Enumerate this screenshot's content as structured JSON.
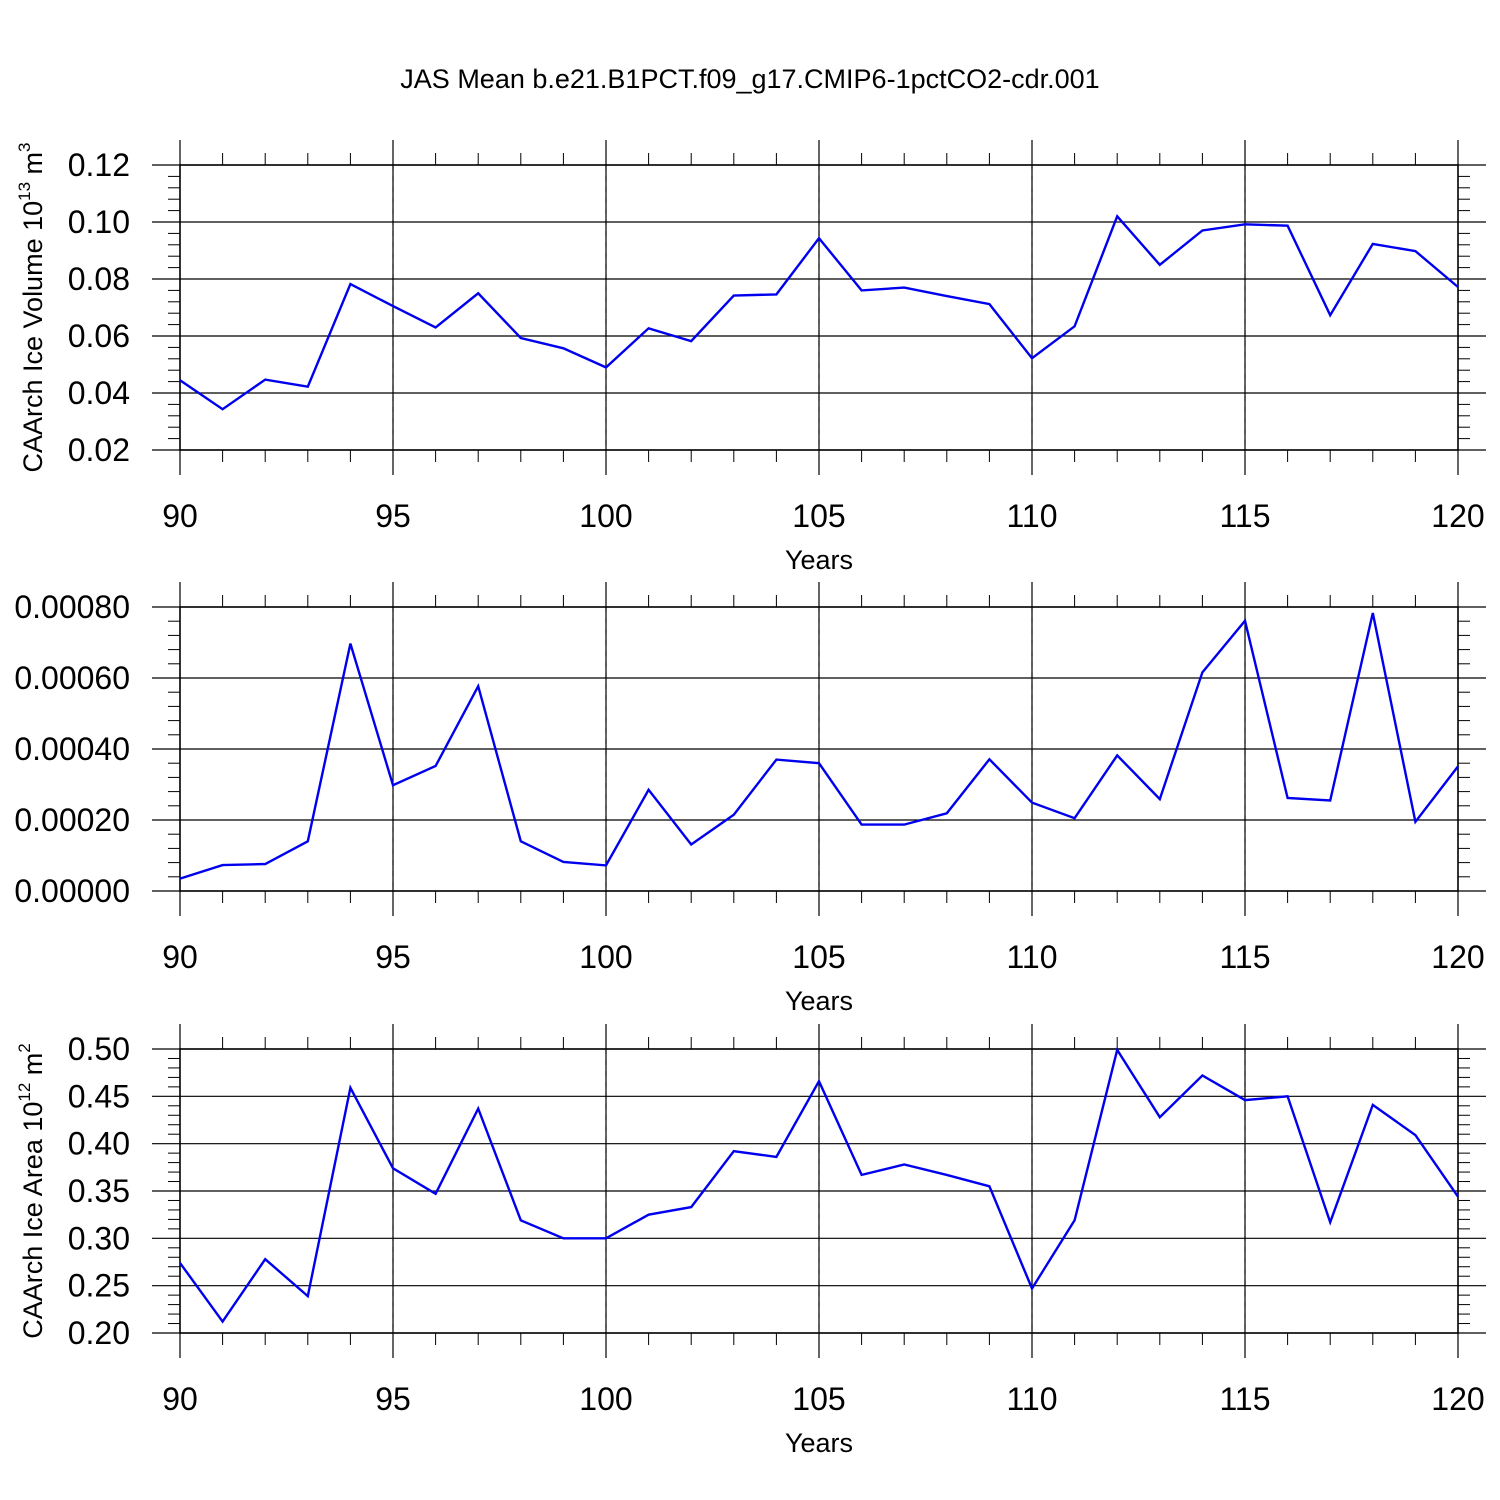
{
  "figure": {
    "title": "JAS Mean b.e21.B1PCT.f09_g17.CMIP6-1pctCO2-cdr.001",
    "line_color": "#0000ee",
    "grid_color": "#888888"
  },
  "chart_data": [
    {
      "type": "line",
      "name": "volume",
      "ylabel": "CAArch Ice Volume 10",
      "ylabel_sup": "13",
      "ylabel_unit": " m",
      "ylabel_unit_sup": "3",
      "xlabel": "Years",
      "xlim": [
        90,
        120
      ],
      "ylim": [
        0.02,
        0.12
      ],
      "x_ticks": [
        "90",
        "95",
        "100",
        "105",
        "110",
        "115",
        "120"
      ],
      "y_ticks": [
        "0.02",
        "0.04",
        "0.06",
        "0.08",
        "0.10",
        "0.12"
      ],
      "vertical_grid_x": [
        95,
        100,
        105,
        110,
        115
      ],
      "series": [
        {
          "x": [
            90,
            91,
            92,
            93,
            94,
            95,
            96,
            97,
            98,
            99,
            100,
            101,
            102,
            103,
            104,
            105,
            106,
            107,
            108,
            109,
            110,
            111,
            112,
            113,
            114,
            115,
            116,
            117,
            118,
            119,
            120
          ],
          "values": [
            0.0445,
            0.0343,
            0.0447,
            0.0422,
            0.0782,
            0.0705,
            0.063,
            0.075,
            0.0593,
            0.0557,
            0.049,
            0.0627,
            0.0582,
            0.0742,
            0.0746,
            0.0943,
            0.076,
            0.077,
            0.074,
            0.0712,
            0.0522,
            0.0634,
            0.102,
            0.085,
            0.097,
            0.0992,
            0.0987,
            0.0673,
            0.0923,
            0.0898,
            0.0772
          ]
        }
      ]
    },
    {
      "type": "line",
      "name": "thickness",
      "ylabel": "",
      "xlabel": "Years",
      "xlim": [
        90,
        120
      ],
      "ylim": [
        0.0,
        0.0008
      ],
      "x_ticks": [
        "90",
        "95",
        "100",
        "105",
        "110",
        "115",
        "120"
      ],
      "y_ticks": [
        "0.00000",
        "0.00020",
        "0.00040",
        "0.00060",
        "0.00080"
      ],
      "vertical_grid_x": [
        95,
        100,
        105,
        110,
        115
      ],
      "series": [
        {
          "x": [
            90,
            91,
            92,
            93,
            94,
            95,
            96,
            97,
            98,
            99,
            100,
            101,
            102,
            103,
            104,
            105,
            106,
            107,
            108,
            109,
            110,
            111,
            112,
            113,
            114,
            115,
            116,
            117,
            118,
            119,
            120
          ],
          "values": [
            3.5e-05,
            7.3e-05,
            7.6e-05,
            0.00014,
            0.000697,
            0.000298,
            0.000352,
            0.000577,
            0.00014,
            8.2e-05,
            7.2e-05,
            0.000285,
            0.000131,
            0.000215,
            0.00037,
            0.00036,
            0.000187,
            0.000187,
            0.000219,
            0.000371,
            0.000249,
            0.000205,
            0.000382,
            0.000259,
            0.000616,
            0.000761,
            0.000262,
            0.000255,
            0.000783,
            0.000195,
            0.000351
          ]
        }
      ]
    },
    {
      "type": "line",
      "name": "area",
      "ylabel": "CAArch Ice Area 10",
      "ylabel_sup": "12",
      "ylabel_unit": " m",
      "ylabel_unit_sup": "2",
      "xlabel": "Years",
      "xlim": [
        90,
        120
      ],
      "ylim": [
        0.2,
        0.5
      ],
      "x_ticks": [
        "90",
        "95",
        "100",
        "105",
        "110",
        "115",
        "120"
      ],
      "y_ticks": [
        "0.20",
        "0.25",
        "0.30",
        "0.35",
        "0.40",
        "0.45",
        "0.50"
      ],
      "vertical_grid_x": [
        95,
        100,
        105,
        110,
        115
      ],
      "series": [
        {
          "x": [
            90,
            91,
            92,
            93,
            94,
            95,
            96,
            97,
            98,
            99,
            100,
            101,
            102,
            103,
            104,
            105,
            106,
            107,
            108,
            109,
            110,
            111,
            112,
            113,
            114,
            115,
            116,
            117,
            118,
            119,
            120
          ],
          "values": [
            0.274,
            0.212,
            0.278,
            0.239,
            0.459,
            0.374,
            0.347,
            0.437,
            0.319,
            0.3,
            0.3,
            0.325,
            0.333,
            0.392,
            0.386,
            0.466,
            0.367,
            0.378,
            0.367,
            0.355,
            0.247,
            0.319,
            0.499,
            0.428,
            0.472,
            0.446,
            0.45,
            0.317,
            0.441,
            0.409,
            0.344
          ]
        }
      ]
    }
  ]
}
